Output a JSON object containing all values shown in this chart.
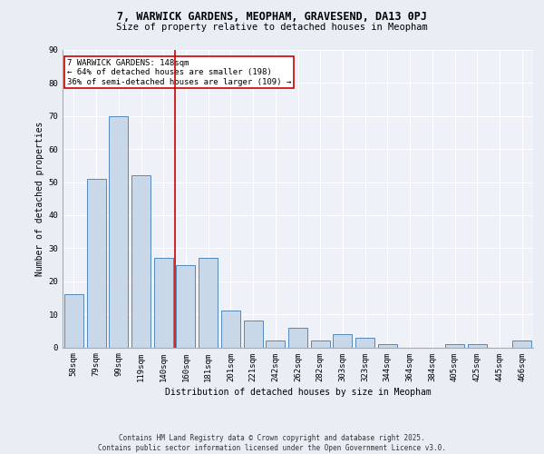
{
  "title_line1": "7, WARWICK GARDENS, MEOPHAM, GRAVESEND, DA13 0PJ",
  "title_line2": "Size of property relative to detached houses in Meopham",
  "xlabel": "Distribution of detached houses by size in Meopham",
  "ylabel": "Number of detached properties",
  "categories": [
    "58sqm",
    "79sqm",
    "99sqm",
    "119sqm",
    "140sqm",
    "160sqm",
    "181sqm",
    "201sqm",
    "221sqm",
    "242sqm",
    "262sqm",
    "282sqm",
    "303sqm",
    "323sqm",
    "344sqm",
    "364sqm",
    "384sqm",
    "405sqm",
    "425sqm",
    "445sqm",
    "466sqm"
  ],
  "values": [
    16,
    51,
    70,
    52,
    27,
    25,
    27,
    11,
    8,
    2,
    6,
    2,
    4,
    3,
    1,
    0,
    0,
    1,
    1,
    0,
    2
  ],
  "bar_color": "#c8d8e8",
  "bar_edge_color": "#5588bb",
  "vline_index": 4,
  "vline_color": "#cc0000",
  "annotation_text": "7 WARWICK GARDENS: 148sqm\n← 64% of detached houses are smaller (198)\n36% of semi-detached houses are larger (109) →",
  "annotation_box_color": "#ffffff",
  "annotation_box_edge": "#cc0000",
  "annotation_fontsize": 6.5,
  "bg_color": "#e8eef4",
  "plot_bg_color": "#eef2f8",
  "grid_color": "#ffffff",
  "footer": "Contains HM Land Registry data © Crown copyright and database right 2025.\nContains public sector information licensed under the Open Government Licence v3.0.",
  "ylim": [
    0,
    90
  ],
  "yticks": [
    0,
    10,
    20,
    30,
    40,
    50,
    60,
    70,
    80,
    90
  ],
  "title_fontsize": 8.5,
  "subtitle_fontsize": 7.5,
  "xlabel_fontsize": 7,
  "ylabel_fontsize": 7,
  "tick_fontsize": 6.5,
  "footer_fontsize": 5.5
}
